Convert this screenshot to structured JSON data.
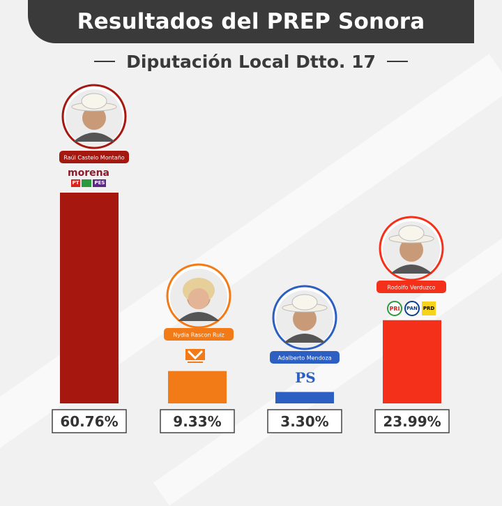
{
  "header": {
    "title": "Resultados del PREP Sonora",
    "subtitle": "Diputación Local Dtto. 17"
  },
  "chart_data": {
    "type": "bar",
    "title": "Resultados del PREP Sonora",
    "subtitle": "Diputación Local Dtto. 17",
    "categories": [
      "Raúl Castelo Montaño",
      "Nydia Rascon Ruiz",
      "Adalberto Mendoza",
      "Rodolfo Verduzco"
    ],
    "values": [
      60.76,
      9.33,
      3.3,
      23.99
    ],
    "value_labels": [
      "60.76%",
      "9.33%",
      "3.30%",
      "23.99%"
    ],
    "colors": [
      "#a5170f",
      "#f27a17",
      "#2d5fc2",
      "#f5301a"
    ],
    "ylim": [
      0,
      60.76
    ],
    "grid": false
  },
  "logos": {
    "morena": "morena",
    "pt": "PT",
    "pes": "PES",
    "pri": "PRI",
    "pan": "PAN",
    "prd": "PRD",
    "ps": "PS"
  }
}
